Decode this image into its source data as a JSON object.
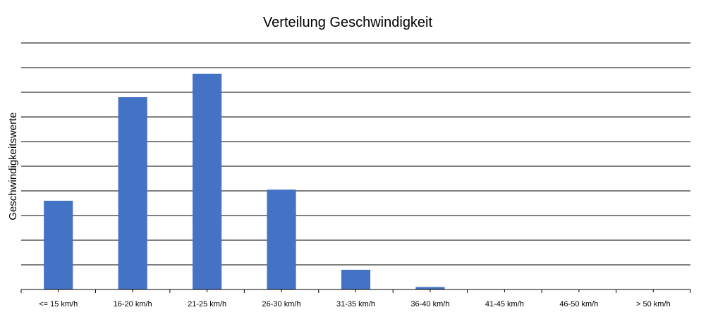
{
  "chart_data": {
    "type": "bar",
    "title": "Verteilung Geschwindigkeit",
    "xlabel": "",
    "ylabel": "Geschwindigkeitswerte",
    "categories": [
      "<= 15 km/h",
      "16-20 km/h",
      "21-25 km/h",
      "26-30 km/h",
      "31-35 km/h",
      "36-40 km/h",
      "41-45 km/h",
      "46-50 km/h",
      "> 50 km/h"
    ],
    "values": [
      3.6,
      7.8,
      8.75,
      4.05,
      0.8,
      0.1,
      0,
      0,
      0
    ],
    "ylim": [
      0,
      10
    ],
    "grid": true,
    "legend": "none",
    "bar_color": "#4472C4"
  }
}
